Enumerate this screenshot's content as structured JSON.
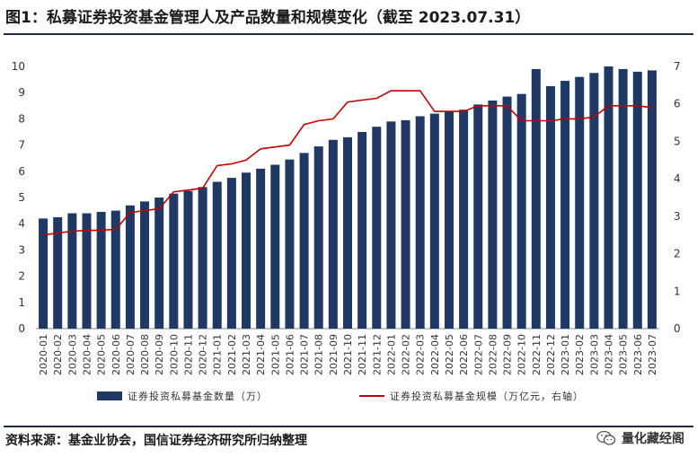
{
  "header": {
    "title": "图1：私募证券投资基金管理人及产品数量和规模变化（截至 2023.07.31）"
  },
  "footer": {
    "source": "资料来源：基金业协会，国信证券经济研究所归纳整理",
    "watermark": "量化藏经阁",
    "watermark_icon": "wechat-icon"
  },
  "chart_data": {
    "type": "bar",
    "categories": [
      "2020-01",
      "2020-02",
      "2020-03",
      "2020-04",
      "2020-05",
      "2020-06",
      "2020-07",
      "2020-08",
      "2020-09",
      "2020-10",
      "2020-11",
      "2020-12",
      "2021-01",
      "2021-02",
      "2021-03",
      "2021-04",
      "2021-05",
      "2021-06",
      "2021-07",
      "2021-08",
      "2021-09",
      "2021-10",
      "2021-11",
      "2021-12",
      "2022-01",
      "2022-02",
      "2022-03",
      "2022-04",
      "2022-05",
      "2022-06",
      "2022-07",
      "2022-08",
      "2022-09",
      "2022-10",
      "2022-11",
      "2022-12",
      "2023-01",
      "2023-02",
      "2023-03",
      "2023-04",
      "2023-05",
      "2023-06",
      "2023-07"
    ],
    "series": [
      {
        "name": "证券投资私募基金数量（万）",
        "type": "bar",
        "axis": "left",
        "color": "#1f3864",
        "values": [
          4.2,
          4.25,
          4.4,
          4.4,
          4.45,
          4.5,
          4.7,
          4.85,
          5.0,
          5.15,
          5.25,
          5.4,
          5.6,
          5.75,
          5.95,
          6.1,
          6.25,
          6.45,
          6.7,
          6.95,
          7.2,
          7.3,
          7.5,
          7.7,
          7.9,
          7.95,
          8.1,
          8.2,
          8.3,
          8.35,
          8.55,
          8.7,
          8.85,
          8.95,
          9.9,
          9.25,
          9.45,
          9.6,
          9.75,
          10.0,
          9.9,
          9.8,
          9.85
        ]
      },
      {
        "name": "证券投资私募基金规模（万亿元，右轴）",
        "type": "line",
        "axis": "right",
        "color": "#c00000",
        "values": [
          2.5,
          2.55,
          2.6,
          2.62,
          2.63,
          2.65,
          3.1,
          3.15,
          3.2,
          3.65,
          3.7,
          3.75,
          4.35,
          4.4,
          4.5,
          4.8,
          4.85,
          4.9,
          5.45,
          5.55,
          5.6,
          6.05,
          6.1,
          6.15,
          6.35,
          6.35,
          6.35,
          5.8,
          5.8,
          5.8,
          5.95,
          5.95,
          5.95,
          5.55,
          5.55,
          5.55,
          5.6,
          5.6,
          5.65,
          5.95,
          5.95,
          5.95,
          5.9
        ]
      }
    ],
    "left_axis": {
      "ylim": [
        0,
        10
      ],
      "ticks": [
        0,
        1,
        2,
        3,
        4,
        5,
        6,
        7,
        8,
        9,
        10
      ]
    },
    "right_axis": {
      "ylim": [
        0,
        7
      ],
      "ticks": [
        0,
        1,
        2,
        3,
        4,
        5,
        6,
        7
      ]
    },
    "legend": {
      "position": "bottom"
    },
    "grid": false
  }
}
